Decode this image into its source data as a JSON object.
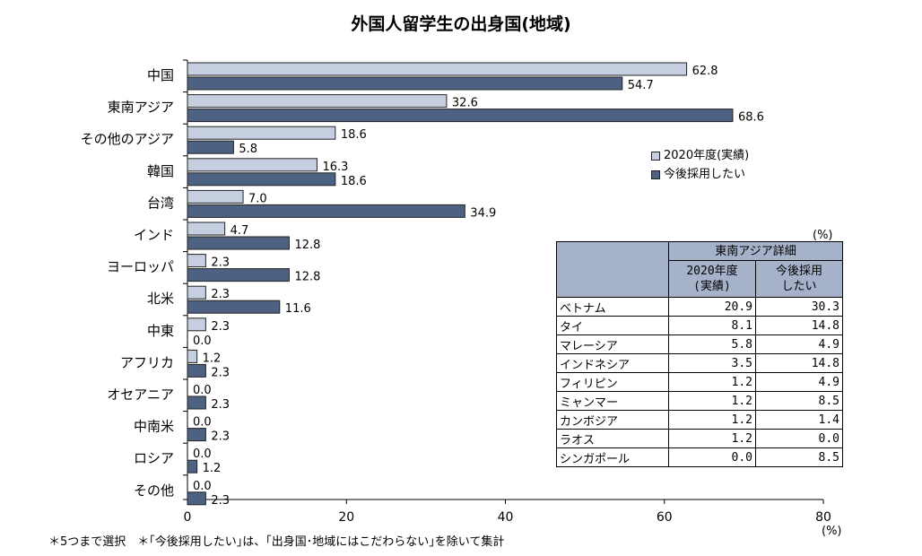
{
  "title": "外国人留学生の出身国(地域)",
  "footnote": "＊5つまで選択　＊｢今後採用したい｣は、｢出身国･地域にはこだわらない｣を除いて集計",
  "x_unit": "(%)",
  "legend": {
    "items": [
      {
        "label": "2020年度(実績)",
        "color": "#c5cfe0"
      },
      {
        "label": "今後採用したい",
        "color": "#4d6182"
      }
    ]
  },
  "colors": {
    "light": "#c5cfe0",
    "dark": "#4d6182",
    "bar_border": "#222222"
  },
  "chart_data": {
    "type": "bar",
    "orientation": "horizontal",
    "title": "外国人留学生の出身国(地域)",
    "categories": [
      "中国",
      "東南アジア",
      "その他のアジア",
      "韓国",
      "台湾",
      "インド",
      "ヨーロッパ",
      "北米",
      "中東",
      "アフリカ",
      "オセアニア",
      "中南米",
      "ロシア",
      "その他"
    ],
    "series": [
      {
        "name": "2020年度(実績)",
        "values": [
          62.8,
          32.6,
          18.6,
          16.3,
          7.0,
          4.7,
          2.3,
          2.3,
          2.3,
          1.2,
          0.0,
          0.0,
          0.0,
          0.0
        ]
      },
      {
        "name": "今後採用したい",
        "values": [
          54.7,
          68.6,
          5.8,
          18.6,
          34.9,
          12.8,
          12.8,
          11.6,
          0.0,
          2.3,
          2.3,
          2.3,
          1.2,
          2.3
        ]
      }
    ],
    "xlim": [
      0,
      80
    ],
    "xticks": [
      "0",
      "20",
      "40",
      "60",
      "80"
    ],
    "xunit": "(%)",
    "grid": false,
    "legend_position": "right"
  },
  "detail_table": {
    "unit": "(%)",
    "header": "東南アジア詳細",
    "col1_header": "2020年度\n(実績)",
    "col2_header": "今後採用\nしたい",
    "rows": [
      {
        "name": "ベトナム",
        "v1": "20.9",
        "v2": "30.3"
      },
      {
        "name": "タイ",
        "v1": "8.1",
        "v2": "14.8"
      },
      {
        "name": "マレーシア",
        "v1": "5.8",
        "v2": "4.9"
      },
      {
        "name": "インドネシア",
        "v1": "3.5",
        "v2": "14.8"
      },
      {
        "name": "フィリピン",
        "v1": "1.2",
        "v2": "4.9"
      },
      {
        "name": "ミャンマー",
        "v1": "1.2",
        "v2": "8.5"
      },
      {
        "name": "カンボジア",
        "v1": "1.2",
        "v2": "1.4"
      },
      {
        "name": "ラオス",
        "v1": "1.2",
        "v2": "0.0"
      },
      {
        "name": "シンガポール",
        "v1": "0.0",
        "v2": "8.5"
      }
    ]
  }
}
